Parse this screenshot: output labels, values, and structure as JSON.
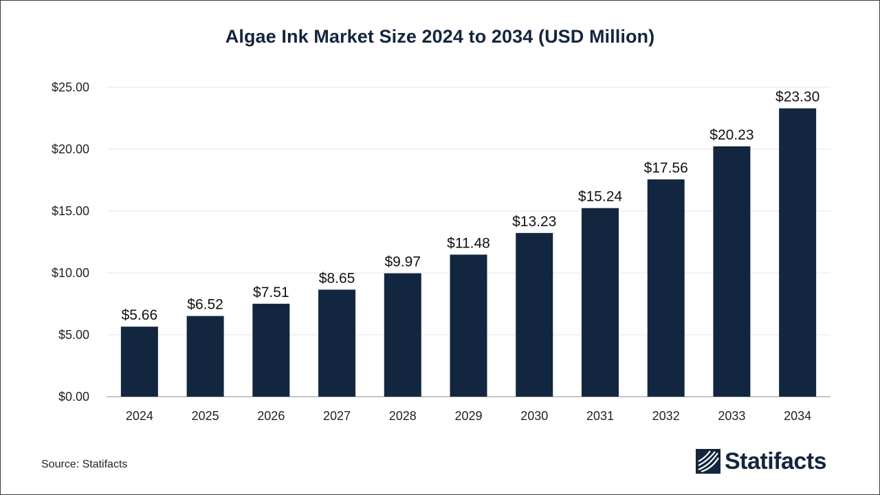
{
  "title": "Algae Ink Market Size 2024 to 2034 (USD Million)",
  "source": "Source: Statifacts",
  "brand": "Statifacts",
  "colors": {
    "bar": "#13263f",
    "title": "#14253d",
    "grid": "#e6e6e6",
    "axis": "#b0b0b0"
  },
  "chart_data": {
    "type": "bar",
    "title": "Algae Ink Market Size 2024 to 2034 (USD Million)",
    "xlabel": "",
    "ylabel": "",
    "categories": [
      "2024",
      "2025",
      "2026",
      "2027",
      "2028",
      "2029",
      "2030",
      "2031",
      "2032",
      "2033",
      "2034"
    ],
    "values": [
      5.66,
      6.52,
      7.51,
      8.65,
      9.97,
      11.48,
      13.23,
      15.24,
      17.56,
      20.23,
      23.3
    ],
    "data_labels": [
      "$5.66",
      "$6.52",
      "$7.51",
      "$8.65",
      "$9.97",
      "$11.48",
      "$13.23",
      "$15.24",
      "$17.56",
      "$20.23",
      "$23.30"
    ],
    "ylim": [
      0,
      25
    ],
    "yticks": [
      0,
      5,
      10,
      15,
      20,
      25
    ],
    "ytick_labels": [
      "$0.00",
      "$5.00",
      "$10.00",
      "$15.00",
      "$20.00",
      "$25.00"
    ],
    "grid": true,
    "legend": "none"
  }
}
